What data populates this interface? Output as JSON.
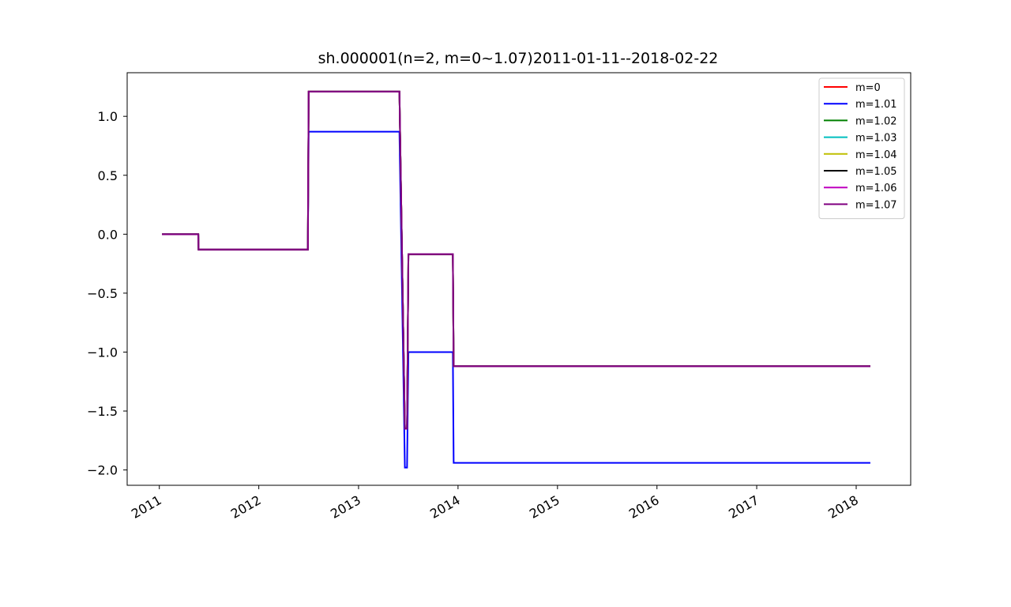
{
  "chart_data": {
    "type": "line",
    "title": "sh.000001(n=2, m=0~1.07)2011-01-11--2018-02-22",
    "xlabel": "",
    "ylabel": "",
    "x_ticks": [
      "2011",
      "2012",
      "2013",
      "2014",
      "2015",
      "2016",
      "2017",
      "2018"
    ],
    "y_ticks": [
      "1.0",
      "0.5",
      "0.0",
      "−0.5",
      "−1.0",
      "−1.5",
      "−2.0"
    ],
    "y_tick_values": [
      1.0,
      0.5,
      0.0,
      -0.5,
      -1.0,
      -1.5,
      -2.0
    ],
    "xlim": [
      "2010-09-05",
      "2018-07-20"
    ],
    "ylim": [
      -2.13,
      1.37
    ],
    "grid": false,
    "legend_position": "top-right",
    "series": [
      {
        "name": "m=0",
        "color": "#ff0000",
        "points": [
          [
            "2011-01-11",
            0.0
          ],
          [
            "2011-05-24",
            0.0
          ],
          [
            "2011-05-25",
            -0.13
          ],
          [
            "2012-06-29",
            -0.13
          ],
          [
            "2012-07-02",
            1.21
          ],
          [
            "2013-05-31",
            1.21
          ],
          [
            "2013-06-20",
            -1.65
          ],
          [
            "2013-06-28",
            -1.65
          ],
          [
            "2013-07-03",
            -0.17
          ],
          [
            "2013-12-13",
            -0.17
          ],
          [
            "2013-12-16",
            -1.12
          ],
          [
            "2018-02-22",
            -1.12
          ]
        ]
      },
      {
        "name": "m=1.01",
        "color": "#0000ff",
        "points": [
          [
            "2011-01-11",
            0.0
          ],
          [
            "2011-05-24",
            0.0
          ],
          [
            "2011-05-25",
            -0.13
          ],
          [
            "2012-06-29",
            -0.13
          ],
          [
            "2012-07-02",
            0.87
          ],
          [
            "2013-05-31",
            0.87
          ],
          [
            "2013-06-20",
            -1.98
          ],
          [
            "2013-06-28",
            -1.98
          ],
          [
            "2013-07-03",
            -1.0
          ],
          [
            "2013-12-13",
            -1.0
          ],
          [
            "2013-12-16",
            -1.94
          ],
          [
            "2018-02-22",
            -1.94
          ]
        ]
      },
      {
        "name": "m=1.02",
        "color": "#008000",
        "points": [
          [
            "2011-01-11",
            0.0
          ],
          [
            "2011-05-24",
            0.0
          ],
          [
            "2011-05-25",
            -0.13
          ],
          [
            "2012-06-29",
            -0.13
          ],
          [
            "2012-07-02",
            1.21
          ],
          [
            "2013-05-31",
            1.21
          ],
          [
            "2013-06-20",
            -1.65
          ],
          [
            "2013-06-28",
            -1.65
          ],
          [
            "2013-07-03",
            -0.17
          ],
          [
            "2013-12-13",
            -0.17
          ],
          [
            "2013-12-16",
            -1.12
          ],
          [
            "2018-02-22",
            -1.12
          ]
        ]
      },
      {
        "name": "m=1.03",
        "color": "#00bfbf",
        "points": [
          [
            "2011-01-11",
            0.0
          ],
          [
            "2011-05-24",
            0.0
          ],
          [
            "2011-05-25",
            -0.13
          ],
          [
            "2012-06-29",
            -0.13
          ],
          [
            "2012-07-02",
            1.21
          ],
          [
            "2013-05-31",
            1.21
          ],
          [
            "2013-06-20",
            -1.65
          ],
          [
            "2013-06-28",
            -1.65
          ],
          [
            "2013-07-03",
            -0.17
          ],
          [
            "2013-12-13",
            -0.17
          ],
          [
            "2013-12-16",
            -1.12
          ],
          [
            "2018-02-22",
            -1.12
          ]
        ]
      },
      {
        "name": "m=1.04",
        "color": "#bfbf00",
        "points": [
          [
            "2011-01-11",
            0.0
          ],
          [
            "2011-05-24",
            0.0
          ],
          [
            "2011-05-25",
            -0.13
          ],
          [
            "2012-06-29",
            -0.13
          ],
          [
            "2012-07-02",
            1.21
          ],
          [
            "2013-05-31",
            1.21
          ],
          [
            "2013-06-20",
            -1.65
          ],
          [
            "2013-06-28",
            -1.65
          ],
          [
            "2013-07-03",
            -0.17
          ],
          [
            "2013-12-13",
            -0.17
          ],
          [
            "2013-12-16",
            -1.12
          ],
          [
            "2018-02-22",
            -1.12
          ]
        ]
      },
      {
        "name": "m=1.05",
        "color": "#000000",
        "points": [
          [
            "2011-01-11",
            0.0
          ],
          [
            "2011-05-24",
            0.0
          ],
          [
            "2011-05-25",
            -0.13
          ],
          [
            "2012-06-29",
            -0.13
          ],
          [
            "2012-07-02",
            1.21
          ],
          [
            "2013-05-31",
            1.21
          ],
          [
            "2013-06-20",
            -1.65
          ],
          [
            "2013-06-28",
            -1.65
          ],
          [
            "2013-07-03",
            -0.17
          ],
          [
            "2013-12-13",
            -0.17
          ],
          [
            "2013-12-16",
            -1.12
          ],
          [
            "2018-02-22",
            -1.12
          ]
        ]
      },
      {
        "name": "m=1.06",
        "color": "#bf00bf",
        "points": [
          [
            "2011-01-11",
            0.0
          ],
          [
            "2011-05-24",
            0.0
          ],
          [
            "2011-05-25",
            -0.13
          ],
          [
            "2012-06-29",
            -0.13
          ],
          [
            "2012-07-02",
            1.21
          ],
          [
            "2013-05-31",
            1.21
          ],
          [
            "2013-06-20",
            -1.65
          ],
          [
            "2013-06-28",
            -1.65
          ],
          [
            "2013-07-03",
            -0.17
          ],
          [
            "2013-12-13",
            -0.17
          ],
          [
            "2013-12-16",
            -1.12
          ],
          [
            "2018-02-22",
            -1.12
          ]
        ]
      },
      {
        "name": "m=1.07",
        "color": "#800080",
        "points": [
          [
            "2011-01-11",
            0.0
          ],
          [
            "2011-05-24",
            0.0
          ],
          [
            "2011-05-25",
            -0.13
          ],
          [
            "2012-06-29",
            -0.13
          ],
          [
            "2012-07-02",
            1.21
          ],
          [
            "2013-05-31",
            1.21
          ],
          [
            "2013-06-20",
            -1.65
          ],
          [
            "2013-06-28",
            -1.65
          ],
          [
            "2013-07-03",
            -0.17
          ],
          [
            "2013-12-13",
            -0.17
          ],
          [
            "2013-12-16",
            -1.12
          ],
          [
            "2018-02-22",
            -1.12
          ]
        ]
      }
    ]
  }
}
